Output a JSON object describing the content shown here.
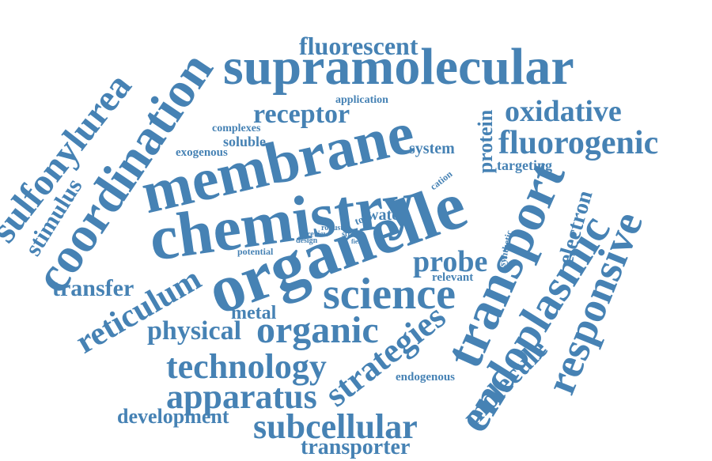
{
  "color": "#4682b4",
  "words": [
    "supramolecular",
    "organelle",
    "chemistry",
    "membrane",
    "coordination",
    "transport",
    "fluorescent",
    "science",
    "endoplasmic",
    "sulfonylurea",
    "organic",
    "responsive",
    "strategies",
    "subcellular",
    "fluorogenic",
    "apparatus",
    "technology",
    "reticulum",
    "oxidative",
    "receptor",
    "complex",
    "probe",
    "molecule",
    "stimulus",
    "physical",
    "transfer",
    "electron",
    "protein",
    "development",
    "transporter",
    "metal",
    "system",
    "targeting",
    "complexes",
    "soluble",
    "exogenous",
    "water",
    "application",
    "endogenous",
    "relevant",
    "cation",
    "synthetic",
    "potential",
    "review",
    "robust",
    "design",
    "tool",
    "str",
    "field"
  ]
}
